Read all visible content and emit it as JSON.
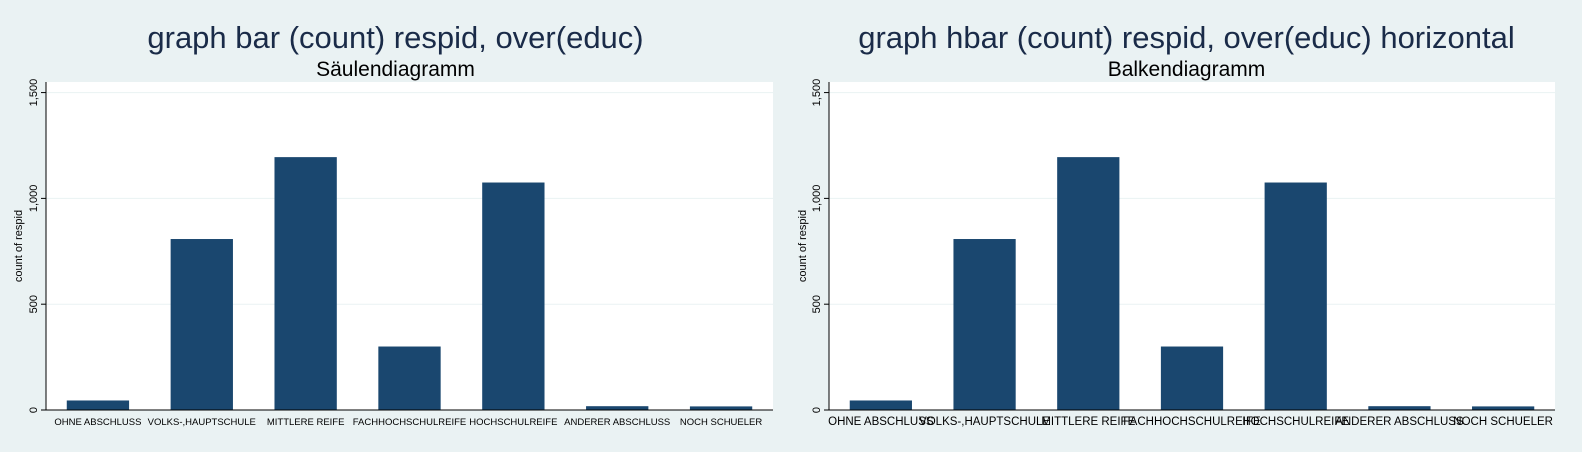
{
  "charts": [
    {
      "title": "graph bar (count) respid, over(educ)",
      "subtitle": "Säulendiagramm",
      "ylabel": "count of respid",
      "yticks": [
        "0",
        "500",
        "1,000",
        "1,500"
      ],
      "categories": [
        "OHNE ABSCHLUSS",
        "VOLKS-,HAUPTSCHULE",
        "MITTLERE REIFE",
        "FACHHOCHSCHULREIFE",
        "HOCHSCHULREIFE",
        "ANDERER ABSCHLUSS",
        "NOCH SCHUELER"
      ]
    },
    {
      "title": "graph hbar (count) respid, over(educ) horizontal",
      "subtitle": "Balkendiagramm",
      "ylabel": "count of respid",
      "yticks": [
        "0",
        "500",
        "1,000",
        "1,500"
      ],
      "categories": [
        "OHNE ABSCHLUSS",
        "VOLKS-,HAUPTSCHULE",
        "MITTLERE REIFE",
        "FACHHOCHSCHULREIFE",
        "HOCHSCHULREIFE",
        "ANDERER ABSCHLUSS",
        "NOCH SCHUELER"
      ]
    }
  ],
  "colors": {
    "bar": "#1a476f",
    "background": "#eaf2f3",
    "plot": "#ffffff",
    "grid": "#eaf2f3"
  },
  "chart_data": [
    {
      "type": "bar",
      "title": "graph bar (count) respid, over(educ)",
      "subtitle": "Säulendiagramm",
      "xlabel": "",
      "ylabel": "count of respid",
      "categories": [
        "OHNE ABSCHLUSS",
        "VOLKS-,HAUPTSCHULE",
        "MITTLERE REIFE",
        "FACHHOCHSCHULREIFE",
        "HOCHSCHULREIFE",
        "ANDERER ABSCHLUSS",
        "NOCH SCHUELER"
      ],
      "values": [
        45,
        808,
        1195,
        300,
        1075,
        18,
        17
      ],
      "ylim": [
        0,
        1550
      ],
      "yticks": [
        0,
        500,
        1000,
        1500
      ],
      "grid": true,
      "legend": "none"
    },
    {
      "type": "bar",
      "title": "graph hbar (count) respid, over(educ) horizontal",
      "subtitle": "Balkendiagramm",
      "xlabel": "",
      "ylabel": "count of respid",
      "categories": [
        "OHNE ABSCHLUSS",
        "VOLKS-,HAUPTSCHULE",
        "MITTLERE REIFE",
        "FACHHOCHSCHULREIFE",
        "HOCHSCHULREIFE",
        "ANDERER ABSCHLUSS",
        "NOCH SCHUELER"
      ],
      "values": [
        45,
        808,
        1195,
        300,
        1075,
        18,
        17
      ],
      "ylim": [
        0,
        1550
      ],
      "yticks": [
        0,
        500,
        1000,
        1500
      ],
      "grid": true,
      "legend": "none"
    }
  ]
}
